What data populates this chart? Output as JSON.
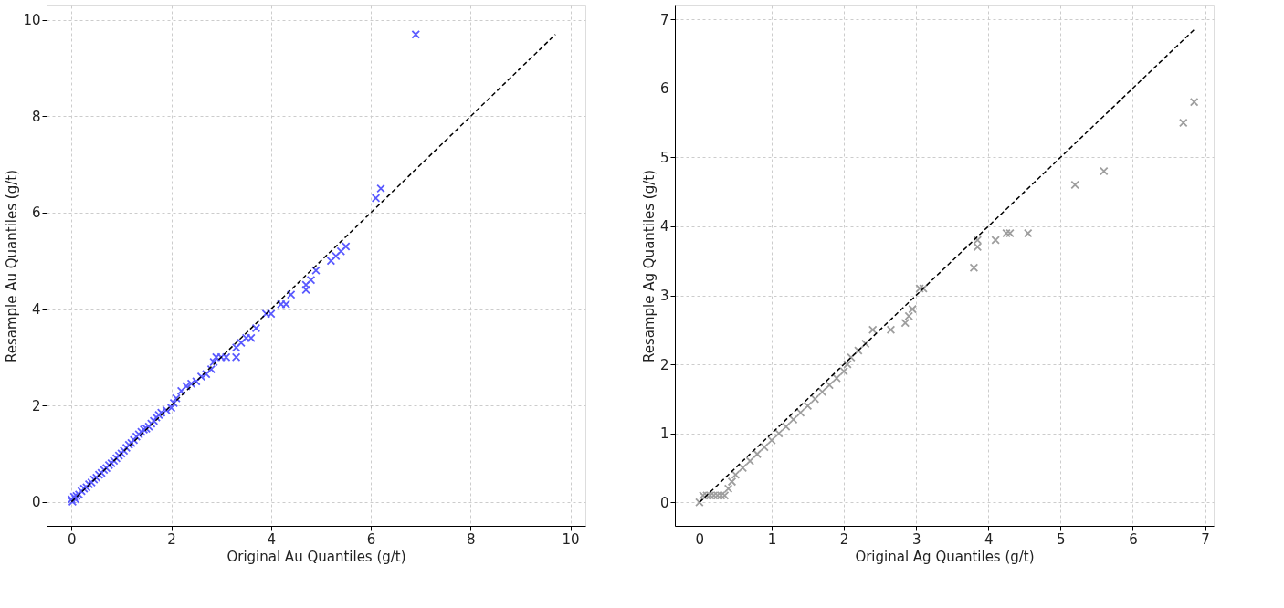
{
  "chart_data": [
    {
      "type": "scatter",
      "xlabel": "Original Au Quantiles (g/t)",
      "ylabel": "Resample Au Quantiles (g/t)",
      "xlim": [
        -0.5,
        10.3
      ],
      "ylim": [
        -0.5,
        10.3
      ],
      "xticks": [
        0,
        2,
        4,
        6,
        8,
        10
      ],
      "yticks": [
        0,
        2,
        4,
        6,
        8,
        10
      ],
      "grid": true,
      "marker": "cross",
      "series": [
        {
          "color": "#5a5aff",
          "x": [
            0,
            0.02,
            0.05,
            0.08,
            0.1,
            0.15,
            0.2,
            0.25,
            0.3,
            0.35,
            0.4,
            0.45,
            0.5,
            0.55,
            0.6,
            0.65,
            0.7,
            0.75,
            0.8,
            0.85,
            0.9,
            0.95,
            1.0,
            1.05,
            1.1,
            1.15,
            1.2,
            1.25,
            1.3,
            1.35,
            1.4,
            1.45,
            1.5,
            1.55,
            1.6,
            1.65,
            1.7,
            1.75,
            1.8,
            1.9,
            2.0,
            2.05,
            2.1,
            2.2,
            2.3,
            2.4,
            2.5,
            2.6,
            2.7,
            2.8,
            2.85,
            2.9,
            3.0,
            3.1,
            3.3,
            3.3,
            3.4,
            3.5,
            3.6,
            3.7,
            3.9,
            4.0,
            4.2,
            4.3,
            4.4,
            4.7,
            4.7,
            4.8,
            4.9,
            5.2,
            5.3,
            5.4,
            5.5,
            6.1,
            6.2,
            6.9
          ],
          "values": [
            0.05,
            0,
            0.1,
            0.05,
            0.12,
            0.15,
            0.22,
            0.27,
            0.3,
            0.36,
            0.4,
            0.46,
            0.5,
            0.56,
            0.6,
            0.66,
            0.7,
            0.76,
            0.8,
            0.85,
            0.9,
            0.96,
            1.0,
            1.06,
            1.12,
            1.18,
            1.22,
            1.28,
            1.35,
            1.4,
            1.45,
            1.5,
            1.52,
            1.56,
            1.62,
            1.68,
            1.75,
            1.8,
            1.85,
            1.9,
            1.95,
            2.05,
            2.15,
            2.3,
            2.4,
            2.45,
            2.5,
            2.6,
            2.65,
            2.75,
            2.9,
            3.0,
            3.0,
            3.0,
            3.2,
            3.0,
            3.3,
            3.4,
            3.4,
            3.6,
            3.9,
            3.9,
            4.1,
            4.1,
            4.3,
            4.5,
            4.4,
            4.6,
            4.8,
            5.0,
            5.1,
            5.2,
            5.3,
            6.3,
            6.5,
            9.7
          ]
        },
        {
          "type": "line",
          "color": "#000000",
          "line_style": "dashed",
          "marker": "none",
          "x": [
            0,
            9.7
          ],
          "values": [
            0,
            9.7
          ]
        }
      ]
    },
    {
      "type": "scatter",
      "xlabel": "Original Ag Quantiles (g/t)",
      "ylabel": "Resample Ag Quantiles (g/t)",
      "xlim": [
        -0.34,
        7.12
      ],
      "ylim": [
        -0.34,
        7.2
      ],
      "xticks": [
        0,
        1,
        2,
        3,
        4,
        5,
        6,
        7
      ],
      "yticks": [
        0,
        1,
        2,
        3,
        4,
        5,
        6,
        7
      ],
      "grid": true,
      "marker": "cross",
      "series": [
        {
          "color": "#9e9e9e",
          "x": [
            0,
            0.05,
            0.1,
            0.15,
            0.2,
            0.25,
            0.3,
            0.35,
            0.4,
            0.45,
            0.5,
            0.6,
            0.7,
            0.8,
            0.9,
            1.0,
            1.1,
            1.2,
            1.3,
            1.4,
            1.5,
            1.6,
            1.7,
            1.8,
            1.9,
            2.0,
            2.05,
            2.1,
            2.2,
            2.3,
            2.4,
            2.65,
            2.85,
            2.9,
            2.95,
            3.05,
            3.1,
            3.8,
            3.85,
            3.85,
            4.1,
            4.25,
            4.3,
            4.55,
            5.2,
            5.6,
            6.7,
            6.85
          ],
          "values": [
            0,
            0.1,
            0.1,
            0.1,
            0.1,
            0.1,
            0.1,
            0.1,
            0.2,
            0.3,
            0.4,
            0.5,
            0.6,
            0.7,
            0.8,
            0.9,
            1.0,
            1.1,
            1.2,
            1.3,
            1.4,
            1.5,
            1.6,
            1.7,
            1.8,
            1.9,
            2.0,
            2.1,
            2.2,
            2.3,
            2.5,
            2.5,
            2.6,
            2.7,
            2.8,
            3.1,
            3.1,
            3.4,
            3.7,
            3.8,
            3.8,
            3.9,
            3.9,
            3.9,
            4.6,
            4.8,
            5.5,
            5.8
          ]
        },
        {
          "type": "line",
          "color": "#000000",
          "line_style": "dashed",
          "marker": "none",
          "x": [
            0,
            6.85
          ],
          "values": [
            0,
            6.85
          ]
        }
      ]
    }
  ]
}
